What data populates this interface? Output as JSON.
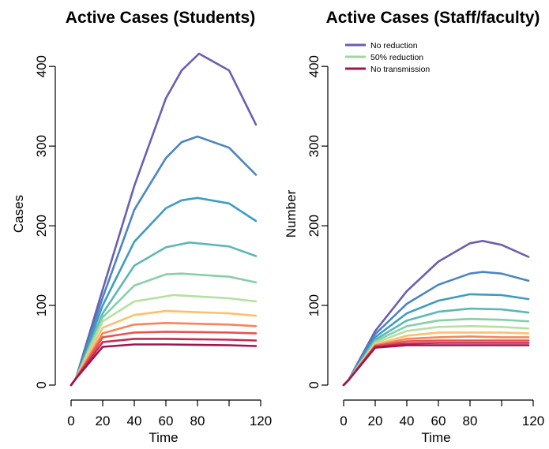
{
  "chart_data": [
    {
      "type": "line",
      "title": "Active Cases (Students)",
      "xlabel": "Time",
      "ylabel": "Cases",
      "xlim": [
        0,
        120
      ],
      "ylim": [
        0,
        420
      ],
      "xticks": [
        0,
        20,
        40,
        60,
        80,
        120
      ],
      "yticks": [
        0,
        100,
        200,
        300,
        400
      ],
      "grid": false,
      "legend": null,
      "series": [
        {
          "color": "#6a5fb0",
          "x": [
            0,
            3,
            20,
            40,
            60,
            70,
            81,
            100,
            117
          ],
          "y": [
            0,
            8,
            120,
            250,
            360,
            395,
            416,
            395,
            327
          ]
        },
        {
          "color": "#4c84c1",
          "x": [
            0,
            3,
            20,
            40,
            60,
            70,
            80,
            100,
            117
          ],
          "y": [
            0,
            8,
            110,
            220,
            285,
            305,
            312,
            298,
            264
          ]
        },
        {
          "color": "#3d9cc1",
          "x": [
            0,
            3,
            20,
            40,
            60,
            70,
            80,
            100,
            117
          ],
          "y": [
            0,
            8,
            100,
            180,
            222,
            232,
            235,
            228,
            206
          ]
        },
        {
          "color": "#5bb8b5",
          "x": [
            0,
            3,
            20,
            40,
            60,
            75,
            100,
            117
          ],
          "y": [
            0,
            8,
            90,
            150,
            173,
            179,
            174,
            162
          ]
        },
        {
          "color": "#87cfa7",
          "x": [
            0,
            3,
            20,
            40,
            60,
            70,
            100,
            117
          ],
          "y": [
            0,
            8,
            85,
            125,
            139,
            140,
            136,
            129
          ]
        },
        {
          "color": "#b5e0a0",
          "x": [
            0,
            3,
            20,
            40,
            65,
            100,
            117
          ],
          "y": [
            0,
            8,
            80,
            105,
            113,
            109,
            105
          ]
        },
        {
          "color": "#fdbf6f",
          "x": [
            0,
            3,
            20,
            40,
            60,
            100,
            117
          ],
          "y": [
            0,
            8,
            72,
            88,
            93,
            90,
            87
          ]
        },
        {
          "color": "#f4865a",
          "x": [
            0,
            3,
            20,
            40,
            60,
            100,
            117
          ],
          "y": [
            0,
            8,
            65,
            76,
            78,
            76,
            74
          ]
        },
        {
          "color": "#e7524e",
          "x": [
            0,
            3,
            20,
            40,
            60,
            100,
            117
          ],
          "y": [
            0,
            8,
            60,
            66,
            67,
            66,
            65
          ]
        },
        {
          "color": "#c72a50",
          "x": [
            0,
            3,
            20,
            40,
            60,
            100,
            117
          ],
          "y": [
            0,
            8,
            54,
            58,
            58,
            57,
            56
          ]
        },
        {
          "color": "#a0144e",
          "x": [
            0,
            3,
            20,
            40,
            60,
            100,
            117
          ],
          "y": [
            0,
            8,
            48,
            51,
            51,
            50,
            49
          ]
        }
      ]
    },
    {
      "type": "line",
      "title": "Active Cases (Staff/faculty)",
      "xlabel": "Time",
      "ylabel": "Number",
      "xlim": [
        0,
        120
      ],
      "ylim": [
        0,
        420
      ],
      "xticks": [
        0,
        20,
        40,
        60,
        80,
        120
      ],
      "yticks": [
        0,
        100,
        200,
        300,
        400
      ],
      "grid": false,
      "legend": {
        "placement": "top-left",
        "entries": [
          {
            "label": "No reduction",
            "color": "#6a5fb0"
          },
          {
            "label": "50% reduction",
            "color": "#9ed8a4"
          },
          {
            "label": "No transmission",
            "color": "#a0144e"
          }
        ]
      },
      "series": [
        {
          "color": "#6a5fb0",
          "x": [
            0,
            3,
            20,
            40,
            60,
            80,
            88,
            100,
            117
          ],
          "y": [
            0,
            6,
            68,
            118,
            155,
            178,
            181,
            176,
            161
          ]
        },
        {
          "color": "#4c84c1",
          "x": [
            0,
            3,
            20,
            40,
            60,
            80,
            88,
            100,
            117
          ],
          "y": [
            0,
            6,
            64,
            102,
            126,
            140,
            142,
            140,
            131
          ]
        },
        {
          "color": "#3d9cc1",
          "x": [
            0,
            3,
            20,
            40,
            60,
            80,
            100,
            117
          ],
          "y": [
            0,
            6,
            60,
            90,
            106,
            114,
            113,
            108
          ]
        },
        {
          "color": "#5bb8b5",
          "x": [
            0,
            3,
            20,
            40,
            60,
            80,
            100,
            117
          ],
          "y": [
            0,
            6,
            57,
            81,
            92,
            96,
            95,
            91
          ]
        },
        {
          "color": "#87cfa7",
          "x": [
            0,
            3,
            20,
            40,
            60,
            80,
            100,
            117
          ],
          "y": [
            0,
            6,
            55,
            74,
            81,
            83,
            82,
            80
          ]
        },
        {
          "color": "#b5e0a0",
          "x": [
            0,
            3,
            20,
            40,
            60,
            80,
            100,
            117
          ],
          "y": [
            0,
            6,
            53,
            68,
            73,
            74,
            73,
            71
          ]
        },
        {
          "color": "#fdbf6f",
          "x": [
            0,
            3,
            20,
            40,
            60,
            80,
            100,
            117
          ],
          "y": [
            0,
            6,
            51,
            62,
            66,
            66,
            66,
            65
          ]
        },
        {
          "color": "#f4865a",
          "x": [
            0,
            3,
            20,
            40,
            60,
            80,
            100,
            117
          ],
          "y": [
            0,
            6,
            50,
            58,
            60,
            61,
            60,
            60
          ]
        },
        {
          "color": "#e7524e",
          "x": [
            0,
            3,
            20,
            40,
            60,
            80,
            100,
            117
          ],
          "y": [
            0,
            6,
            49,
            55,
            56,
            56,
            56,
            56
          ]
        },
        {
          "color": "#c72a50",
          "x": [
            0,
            3,
            20,
            40,
            60,
            80,
            100,
            117
          ],
          "y": [
            0,
            6,
            48,
            52,
            53,
            53,
            53,
            53
          ]
        },
        {
          "color": "#a0144e",
          "x": [
            0,
            3,
            20,
            40,
            60,
            80,
            100,
            117
          ],
          "y": [
            0,
            6,
            47,
            50,
            50,
            50,
            50,
            50
          ]
        }
      ]
    }
  ]
}
